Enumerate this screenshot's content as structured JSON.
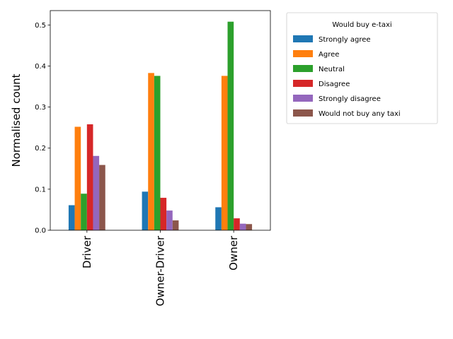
{
  "chart_data": {
    "type": "bar",
    "title": "",
    "xlabel": "",
    "ylabel": "Normalised count",
    "ylim": [
      0,
      0.535
    ],
    "yticks": [
      0.0,
      0.1,
      0.2,
      0.3,
      0.4,
      0.5
    ],
    "ytick_labels": [
      "0.0",
      "0.1",
      "0.2",
      "0.3",
      "0.4",
      "0.5"
    ],
    "categories": [
      "Driver",
      "Owner-Driver",
      "Owner"
    ],
    "grid": false,
    "legend_title": "Would buy e-taxi",
    "legend_position": "outside-right-top",
    "series": [
      {
        "name": "Strongly agree",
        "color": "#1f77b4",
        "values": [
          0.061,
          0.094,
          0.056
        ]
      },
      {
        "name": "Agree",
        "color": "#ff7f0e",
        "values": [
          0.252,
          0.383,
          0.376
        ]
      },
      {
        "name": "Neutral",
        "color": "#2ca02c",
        "values": [
          0.089,
          0.376,
          0.508
        ]
      },
      {
        "name": "Disagree",
        "color": "#d62728",
        "values": [
          0.258,
          0.079,
          0.029
        ]
      },
      {
        "name": "Strongly disagree",
        "color": "#9467bd",
        "values": [
          0.181,
          0.048,
          0.016
        ]
      },
      {
        "name": "Would not buy any taxi",
        "color": "#8c564b",
        "values": [
          0.159,
          0.024,
          0.015
        ]
      }
    ]
  }
}
